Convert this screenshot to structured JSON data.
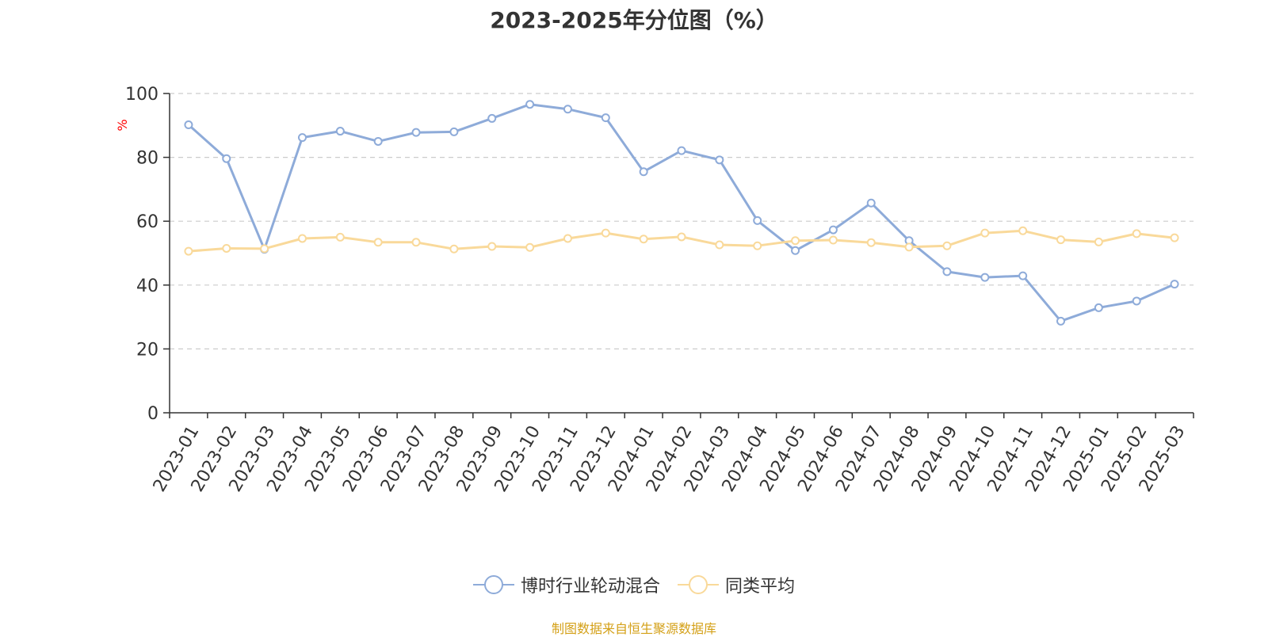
{
  "chart_data": {
    "type": "line",
    "title": "2023-2025年分位图（%）",
    "ylabel": "%",
    "xlabel": "",
    "ylim": [
      0,
      100
    ],
    "yticks": [
      "0",
      "20",
      "40",
      "60",
      "80",
      "100"
    ],
    "grid": true,
    "legend_position": "bottom-center",
    "categories": [
      "2023-01",
      "2023-02",
      "2023-03",
      "2023-04",
      "2023-05",
      "2023-06",
      "2023-07",
      "2023-08",
      "2023-09",
      "2023-10",
      "2023-11",
      "2023-12",
      "2024-01",
      "2024-02",
      "2024-03",
      "2024-04",
      "2024-05",
      "2024-06",
      "2024-07",
      "2024-08",
      "2024-09",
      "2024-10",
      "2024-11",
      "2024-12",
      "2025-01",
      "2025-02",
      "2025-03"
    ],
    "series": [
      {
        "name": "博时行业轮动混合",
        "color": "#8eabd9",
        "values": [
          90.2,
          79.6,
          51.2,
          86.2,
          88.2,
          85.0,
          87.8,
          88.0,
          92.2,
          96.6,
          95.1,
          92.4,
          75.5,
          82.1,
          79.2,
          60.2,
          50.8,
          57.3,
          65.7,
          53.9,
          44.2,
          42.4,
          42.9,
          28.7,
          32.9,
          35.0,
          40.3
        ]
      },
      {
        "name": "同类平均",
        "color": "#f9d99a",
        "values": [
          50.6,
          51.5,
          51.4,
          54.6,
          55.0,
          53.4,
          53.4,
          51.3,
          52.1,
          51.8,
          54.6,
          56.3,
          54.4,
          55.1,
          52.6,
          52.3,
          53.9,
          54.1,
          53.3,
          51.9,
          52.3,
          56.3,
          57.0,
          54.2,
          53.5,
          56.1,
          54.8
        ]
      }
    ],
    "source_note": "制图数据来自恒生聚源数据库",
    "colors": {
      "axis": "#333333",
      "grid": "#cccccc",
      "ylabel": "#ff0000",
      "source": "#d4a017"
    }
  }
}
